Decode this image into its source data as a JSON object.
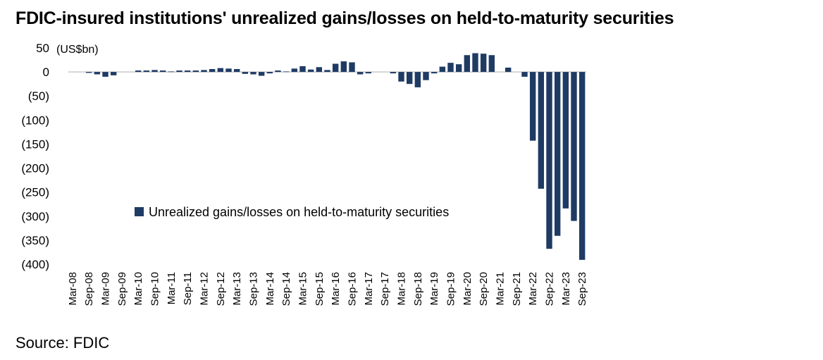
{
  "title": "FDIC-insured institutions' unrealized gains/losses on held-to-maturity securities",
  "source": "Source: FDIC",
  "chart_data": {
    "type": "bar",
    "unit_label": "(US$bn)",
    "ylim": [
      -400,
      50
    ],
    "yticks": [
      50,
      0,
      -50,
      -100,
      -150,
      -200,
      -250,
      -300,
      -350,
      -400
    ],
    "ytick_labels": [
      "50",
      "0",
      "(50)",
      "(100)",
      "(150)",
      "(200)",
      "(250)",
      "(300)",
      "(350)",
      "(400)"
    ],
    "x_tick_labels": [
      "Mar-08",
      "Sep-08",
      "Mar-09",
      "Sep-09",
      "Mar-10",
      "Sep-10",
      "Mar-11",
      "Sep-11",
      "Mar-12",
      "Sep-12",
      "Mar-13",
      "Sep-13",
      "Mar-14",
      "Sep-14",
      "Mar-15",
      "Sep-15",
      "Mar-16",
      "Sep-16",
      "Mar-17",
      "Sep-17",
      "Mar-18",
      "Sep-18",
      "Mar-19",
      "Sep-19",
      "Mar-20",
      "Sep-20",
      "Mar-21",
      "Sep-21",
      "Mar-22",
      "Sep-22",
      "Mar-23",
      "Sep-23"
    ],
    "categories": [
      "Mar-08",
      "Jun-08",
      "Sep-08",
      "Dec-08",
      "Mar-09",
      "Jun-09",
      "Sep-09",
      "Dec-09",
      "Mar-10",
      "Jun-10",
      "Sep-10",
      "Dec-10",
      "Mar-11",
      "Jun-11",
      "Sep-11",
      "Dec-11",
      "Mar-12",
      "Jun-12",
      "Sep-12",
      "Dec-12",
      "Mar-13",
      "Jun-13",
      "Sep-13",
      "Dec-13",
      "Mar-14",
      "Jun-14",
      "Sep-14",
      "Dec-14",
      "Mar-15",
      "Jun-15",
      "Sep-15",
      "Dec-15",
      "Mar-16",
      "Jun-16",
      "Sep-16",
      "Dec-16",
      "Mar-17",
      "Jun-17",
      "Sep-17",
      "Dec-17",
      "Mar-18",
      "Jun-18",
      "Sep-18",
      "Dec-18",
      "Mar-19",
      "Jun-19",
      "Sep-19",
      "Dec-19",
      "Mar-20",
      "Jun-20",
      "Sep-20",
      "Dec-20",
      "Mar-21",
      "Jun-21",
      "Sep-21",
      "Dec-21",
      "Mar-22",
      "Jun-22",
      "Sep-22",
      "Dec-22",
      "Mar-23",
      "Jun-23",
      "Sep-23"
    ],
    "series": [
      {
        "name": "Unrealized gains/losses on held-to-maturity securities",
        "color": "#1f3b64",
        "values": [
          0,
          0,
          -2,
          -5,
          -10,
          -7,
          0,
          0,
          3,
          3,
          4,
          3,
          1,
          3,
          3,
          3,
          4,
          6,
          8,
          7,
          6,
          -4,
          -5,
          -8,
          -3,
          3,
          1,
          7,
          12,
          5,
          10,
          4,
          17,
          22,
          20,
          -5,
          -3,
          0,
          0,
          -3,
          -20,
          -25,
          -32,
          -17,
          -3,
          11,
          19,
          16,
          35,
          39,
          38,
          35,
          0,
          9,
          0,
          -10,
          -143,
          -243,
          -368,
          -341,
          -284,
          -310,
          -391
        ]
      }
    ],
    "legend": {
      "position": "center-left",
      "entries": [
        "Unrealized gains/losses on held-to-maturity securities"
      ]
    },
    "grid": false
  }
}
